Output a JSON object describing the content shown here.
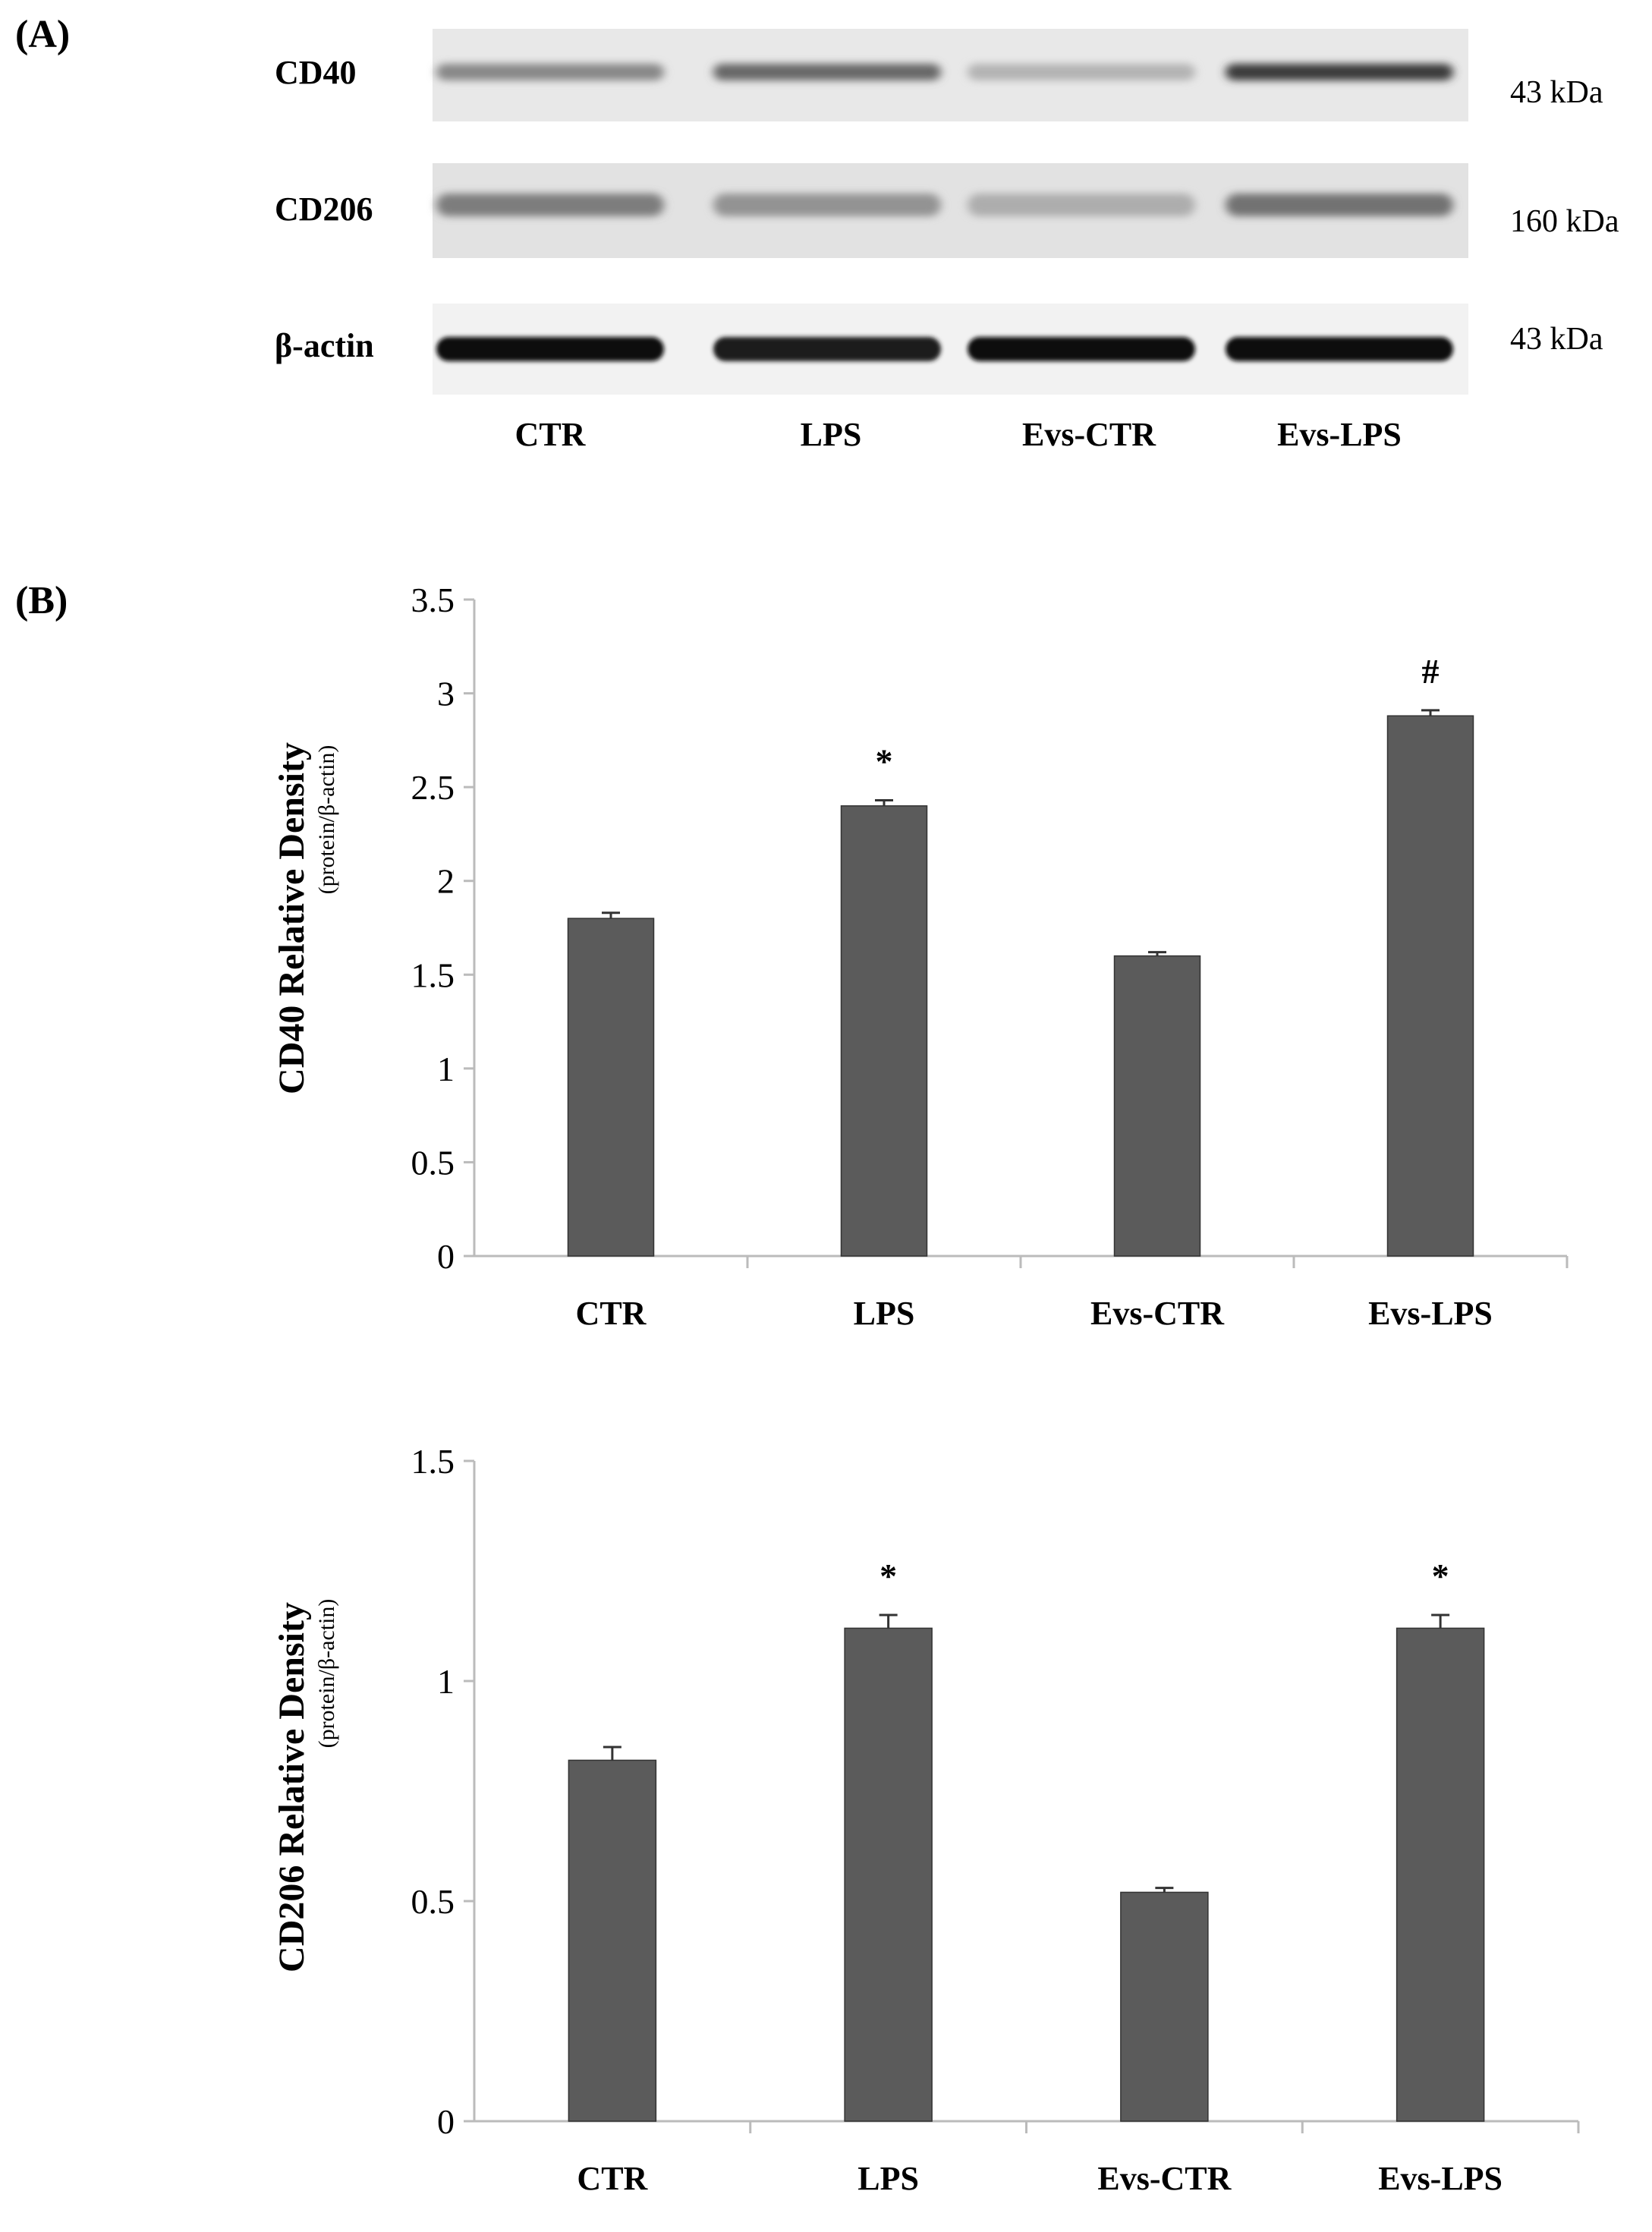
{
  "panel_a": {
    "label": "(A)",
    "blots": [
      {
        "name": "CD40",
        "kda": "43 kDa",
        "intensity": [
          0.45,
          0.6,
          0.25,
          0.8
        ]
      },
      {
        "name": "CD206",
        "kda": "160 kDa",
        "intensity": [
          0.5,
          0.4,
          0.28,
          0.55
        ]
      },
      {
        "name": "β-actin",
        "kda": "43 kDa",
        "intensity": [
          1.0,
          0.95,
          1.0,
          1.0
        ]
      }
    ],
    "lanes": [
      "CTR",
      "LPS",
      "Evs-CTR",
      "Evs-LPS"
    ]
  },
  "panel_b": {
    "label": "(B)"
  },
  "bar_color": "#5b5b5b",
  "chart_data": [
    {
      "type": "bar",
      "categories": [
        "CTR",
        "LPS",
        "Evs-CTR",
        "Evs-LPS"
      ],
      "values": [
        1.8,
        2.4,
        1.6,
        2.88
      ],
      "errors": [
        0.03,
        0.03,
        0.02,
        0.03
      ],
      "annotations": [
        "",
        "*",
        "",
        "#"
      ],
      "ylabel_main": "CD40  Relative Density",
      "ylabel_sub": "(protein/β-actin)",
      "ylim": [
        0,
        3.5
      ],
      "yticks": [
        "0",
        "0.5",
        "1",
        "1.5",
        "2",
        "2.5",
        "3",
        "3.5"
      ],
      "ytick_values": [
        0,
        0.5,
        1,
        1.5,
        2,
        2.5,
        3,
        3.5
      ]
    },
    {
      "type": "bar",
      "categories": [
        "CTR",
        "LPS",
        "Evs-CTR",
        "Evs-LPS"
      ],
      "values": [
        0.82,
        1.12,
        0.52,
        1.12
      ],
      "errors": [
        0.03,
        0.03,
        0.01,
        0.03
      ],
      "annotations": [
        "",
        "*",
        "",
        "*"
      ],
      "ylabel_main": "CD206  Relative Density",
      "ylabel_sub": "(protein/β-actin)",
      "ylim": [
        0,
        1.5
      ],
      "yticks": [
        "0",
        "0.5",
        "1",
        "1.5"
      ],
      "ytick_values": [
        0,
        0.5,
        1,
        1.5
      ]
    }
  ]
}
